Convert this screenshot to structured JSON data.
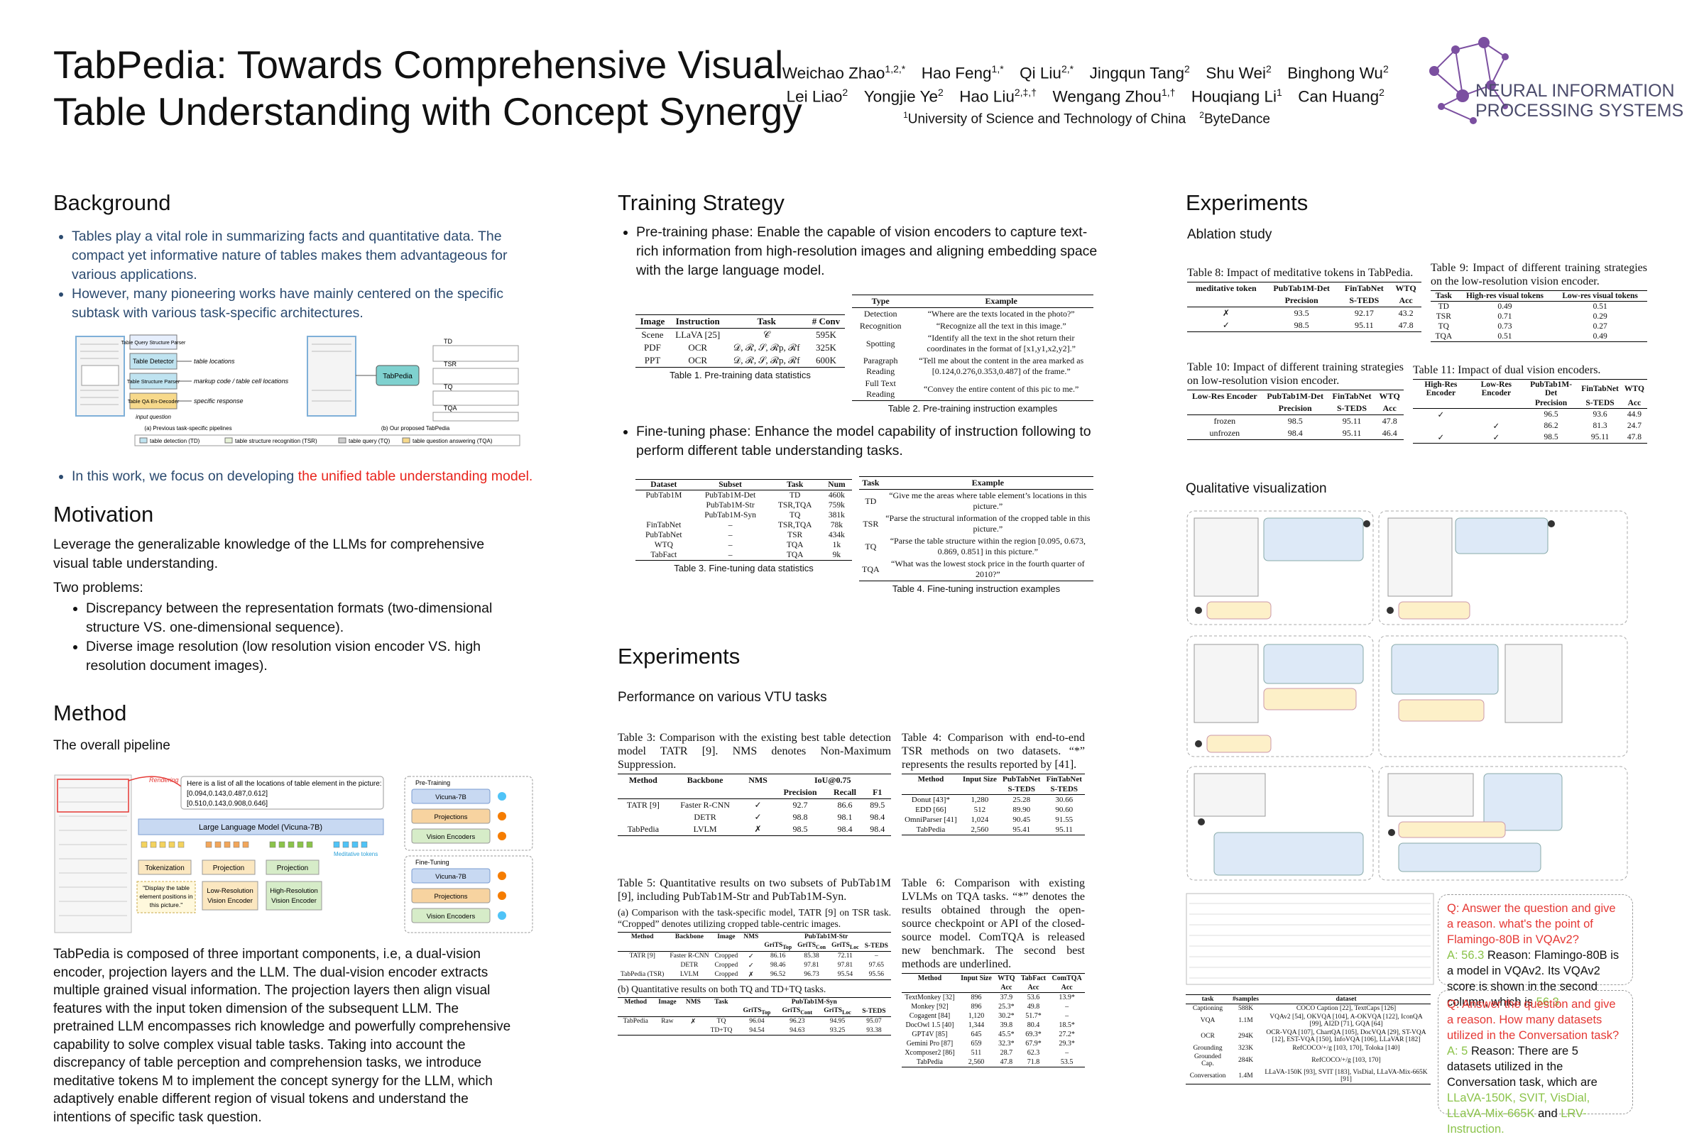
{
  "header": {
    "title_lines": [
      "TabPedia: Towards Comprehensive Visual",
      "Table Understanding with Concept Synergy"
    ],
    "authors": [
      [
        {
          "name": "Weichao Zhao",
          "sup": "1,2,*"
        },
        {
          "name": "Hao Feng",
          "sup": "1,*"
        },
        {
          "name": "Qi Liu",
          "sup": "2,*"
        },
        {
          "name": "Jingqun Tang",
          "sup": "2"
        },
        {
          "name": "Shu Wei",
          "sup": "2"
        },
        {
          "name": "Binghong Wu",
          "sup": "2"
        }
      ],
      [
        {
          "name": "Lei Liao",
          "sup": "2"
        },
        {
          "name": "Yongjie Ye",
          "sup": "2"
        },
        {
          "name": "Hao Liu",
          "sup": "2,‡,†"
        },
        {
          "name": "Wengang Zhou",
          "sup": "1,†"
        },
        {
          "name": "Houqiang Li",
          "sup": "1"
        },
        {
          "name": "Can Huang",
          "sup": "2"
        }
      ]
    ],
    "affiliations": [
      {
        "sup": "1",
        "name": "University of Science and Technology of China"
      },
      {
        "sup": "2",
        "name": "ByteDance"
      }
    ],
    "logo": [
      "NEURAL INFORMATION",
      "PROCESSING SYSTEMS"
    ]
  },
  "background": {
    "heading": "Background",
    "bullets": [
      "Tables play a vital role in summarizing facts and quantitative data. The compact yet informative nature of tables makes them advantageous for various applications.",
      "However, many pioneering works have mainly centered on the specific subtask with various task-specific architectures."
    ],
    "figure": {
      "boxes": [
        "Table Query Structure Parser",
        "Table Detector",
        "Table Structure Parser",
        "Table QA En-Decoder"
      ],
      "outputs": [
        "table locations",
        "markup code / table cell locations",
        "specific response"
      ],
      "input": "input question",
      "ours": "TabPedia",
      "ours_tasks": [
        "TD",
        "TSR",
        "TQ",
        "TQA"
      ],
      "captions": [
        "(a) Previous task-specific pipelines",
        "(b) Our proposed TabPedia"
      ],
      "legend": [
        "table detection (TD)",
        "table structure recognition (TSR)",
        "table query (TQ)",
        "table question answering (TQA)"
      ]
    },
    "last_bullet": [
      {
        "text": "In this work, we focus on developing "
      },
      {
        "text": "the unified table understanding model.",
        "color": "#e8241c"
      }
    ]
  },
  "motivation": {
    "heading": "Motivation",
    "text": "Leverage the generalizable knowledge of the LLMs for comprehensive visual table understanding.",
    "problems_label": "Two problems:",
    "problems": [
      "Discrepancy between the representation formats (two-dimensional structure VS. one-dimensional sequence).",
      "Diverse image resolution (low resolution vision encoder VS. high resolution document images)."
    ]
  },
  "method": {
    "heading": "Method",
    "subheading": "The overall pipeline",
    "figure": {
      "rendering": "Rendering",
      "response": [
        "Here is a list of all the locations of table element in the picture:",
        "[0.094,0.143,0.487,0.612]",
        "[0.510,0.143,0.908,0.646]"
      ],
      "llm": "Large Language Model (Vicuna-7B)",
      "meditative": "Meditative tokens",
      "tokenization": "Tokenization",
      "projection": "Projection",
      "prompt": [
        "\"Display the table",
        "element positions in",
        "this picture.\""
      ],
      "low_res": [
        "Low-Resolution",
        "Vision Encoder"
      ],
      "high_res": [
        "High-Resolution",
        "Vision Encoder"
      ],
      "pretraining": "Pre-Training",
      "finetuning": "Fine-Tuning",
      "modules": [
        "Vicuna-7B",
        "Projections",
        "Vision Encoders"
      ]
    },
    "text": "TabPedia is composed of three important components, i.e, a dual-vision encoder, projection layers and the LLM. The dual-vision encoder extracts multiple grained visual information.  The projection layers then align visual features with the input token dimension of the subsequent LLM. The pretrained LLM encompasses rich knowledge and powerfully comprehensive capability to solve complex visual table tasks. Taking into account the discrepancy of table perception and comprehension tasks, we introduce meditative tokens M to implement the concept synergy for the LLM, which adaptively enable different region of visual tokens and understand the intentions of specific task question."
  },
  "training": {
    "heading": "Training Strategy",
    "bullet1": "Pre-training phase: Enable the capable of vision encoders to capture text-rich information from high-resolution images and aligning embedding space with the large language model.",
    "bullet2": "Fine-tuning phase: Enhance the model capability of instruction following to perform different table understanding tasks.",
    "t1": {
      "caption": "Table 1. Pre-training data statistics",
      "header": [
        [
          "Image",
          "Instruction",
          "Task",
          "# Conv"
        ]
      ],
      "rows": [
        [
          "Scene",
          "LLaVA [25]",
          "𝒞",
          "595K"
        ],
        [
          "PDF",
          "OCR",
          "𝒟, ℛ, 𝒮, ℛp, ℛf",
          "325K"
        ],
        [
          "PPT",
          "OCR",
          "𝒟, ℛ, 𝒮, ℛp, ℛf",
          "600K"
        ]
      ]
    },
    "t2": {
      "caption": "Table 2. Pre-training instruction examples",
      "header": [
        [
          "Type",
          "Example"
        ]
      ],
      "rows": [
        [
          "Detection",
          "“Where are the texts located in the photo?”"
        ],
        [
          "Recognition",
          "“Recognize all the text in this image.”"
        ],
        [
          "Spotting",
          "“Identify all the text in the shot return their coordinates in the format of [x1,y1,x2,y2].”"
        ],
        [
          "Paragraph Reading",
          "“Tell me about the content in the area marked as [0.124,0.276,0.353,0.487] of the frame.”"
        ],
        [
          "Full Text Reading",
          "“Convey the entire content of this pic to me.”"
        ]
      ]
    },
    "t3": {
      "caption": "Table 3. Fine-tuning data statistics",
      "header": [
        [
          "Dataset",
          "Subset",
          "Task",
          "Num"
        ]
      ],
      "rows": [
        [
          "PubTab1M",
          "PubTab1M-Det",
          "TD",
          "460k"
        ],
        [
          null,
          "PubTab1M-Str",
          "TSR,TQA",
          "759k"
        ],
        [
          null,
          "PubTab1M-Syn",
          "TQ",
          "381k"
        ],
        [
          "FinTabNet",
          "–",
          "TSR,TQA",
          "78k"
        ],
        [
          "PubTabNet",
          "–",
          "TSR",
          "434k"
        ],
        [
          "WTQ",
          "–",
          "TQA",
          "1k"
        ],
        [
          "TabFact",
          "–",
          "TQA",
          "9k"
        ]
      ]
    },
    "t4": {
      "caption": "Table 4. Fine-tuning instruction examples",
      "header": [
        [
          "Task",
          "Example"
        ]
      ],
      "rows": [
        [
          "TD",
          "“Give me the areas where table element’s locations in this picture.”"
        ],
        [
          "TSR",
          "“Parse the structural information of the cropped table in this picture.”"
        ],
        [
          "TQ",
          "“Parse the table structure within the region [0.095, 0.673, 0.869, 0.851] in this picture.”"
        ],
        [
          "TQA",
          "“What was the lowest stock price in the fourth quarter of 2010?”"
        ]
      ]
    }
  },
  "experiments": {
    "heading": "Experiments",
    "subheading": "Performance on various VTU tasks",
    "t3": {
      "caption": "Table 3: Comparison with the existing best table detection model TATR [9].  NMS denotes Non-Maximum Suppression.",
      "header": [
        [
          "Method",
          "Backbone",
          "NMS",
          "IoU@0.75",
          null,
          null
        ],
        [
          null,
          null,
          null,
          "Precision",
          "Recall",
          "F1"
        ]
      ],
      "rows": [
        [
          "TATR [9]",
          "Faster R-CNN",
          "✓",
          "92.7",
          "86.6",
          "89.5"
        ],
        [
          null,
          "DETR",
          "✓",
          "98.8",
          "98.1",
          "98.4"
        ],
        [
          "TabPedia",
          "LVLM",
          "✗",
          "98.5",
          "98.4",
          "98.4"
        ]
      ]
    },
    "t4": {
      "caption": "Table 4:  Comparison with end-to-end TSR methods on two datasets. “*” represents the results reported by [41].",
      "header": [
        [
          "Method",
          "Input Size",
          "PubTabNet",
          "FinTabNet"
        ],
        [
          null,
          null,
          "S-TEDS",
          "S-TEDS"
        ]
      ],
      "rows": [
        [
          "Donut [43]*",
          "1,280",
          "25.28",
          "30.66"
        ],
        [
          "EDD [66]",
          "512",
          "89.90",
          "90.60"
        ],
        [
          "OmniParser [41]",
          "1,024",
          "90.45",
          "91.55"
        ],
        [
          "TabPedia",
          "2,560",
          "95.41",
          "95.11"
        ]
      ]
    },
    "t5": {
      "caption": "Table 5:  Quantitative results on two subsets of PubTab1M [9], including PubTab1M-Str and PubTab1M-Syn.",
      "parts": [
        {
          "subcaption": "(a) Comparison with the task-specific model, TATR [9] on TSR task. “Cropped” denotes utilizing cropped table-centric images.",
          "header": [
            [
              "Method",
              "Backbone",
              "Image",
              "NMS",
              "PubTab1M-Str",
              null,
              null,
              null
            ],
            [
              null,
              null,
              null,
              null,
              [
                {
                  "text": "GriTS"
                },
                {
                  "text": "Top",
                  "sub": true
                }
              ],
              [
                {
                  "text": "GriTS"
                },
                {
                  "text": "Con",
                  "sub": true
                }
              ],
              [
                {
                  "text": "GriTS"
                },
                {
                  "text": "Loc",
                  "sub": true
                }
              ],
              "S-TEDS"
            ]
          ],
          "rows": [
            [
              "TATR [9]",
              "Faster R-CNN",
              "Cropped",
              "✓",
              "86.16",
              "85.38",
              "72.11",
              "–"
            ],
            [
              null,
              "DETR",
              "Cropped",
              "✓",
              "98.46",
              "97.81",
              "97.81",
              "97.65"
            ],
            [
              "TabPedia (TSR)",
              "LVLM",
              "Cropped",
              "✗",
              "96.52",
              "96.73",
              "95.54",
              "95.56"
            ]
          ]
        },
        {
          "subcaption": "(b) Quantitative results on both TQ and TD+TQ tasks.",
          "header": [
            [
              "Method",
              "Image",
              "NMS",
              "Task",
              "PubTab1M-Syn",
              null,
              null,
              null
            ],
            [
              null,
              null,
              null,
              null,
              [
                {
                  "text": "GriTS"
                },
                {
                  "text": "Top",
                  "sub": true
                }
              ],
              [
                {
                  "text": "GriTS"
                },
                {
                  "text": "Cont",
                  "sub": true
                }
              ],
              [
                {
                  "text": "GriTS"
                },
                {
                  "text": "Loc",
                  "sub": true
                }
              ],
              "S-TEDS"
            ]
          ],
          "rows": [
            [
              "TabPedia",
              "Raw",
              "✗",
              "TQ",
              "96.04",
              "96.23",
              "94.95",
              "95.07"
            ],
            [
              null,
              null,
              null,
              "TD+TQ",
              "94.54",
              "94.63",
              "93.25",
              "93.38"
            ]
          ]
        }
      ]
    },
    "t6": {
      "caption": "Table 6:  Comparison with existing LVLMs on TQA tasks.  “*” denotes the results obtained through the open-source checkpoint or API of the closed-source model.  ComTQA is released new benchmark.  The second best methods are underlined.",
      "header": [
        [
          "Method",
          "Input Size",
          "WTQ",
          "TabFact",
          "ComTQA"
        ],
        [
          null,
          null,
          "Acc",
          "Acc",
          "Acc"
        ]
      ],
      "rows": [
        [
          "TextMonkey [32]",
          "896",
          "37.9",
          "53.6",
          "13.9*"
        ],
        [
          "Monkey [92]",
          "896",
          "25.3*",
          "49.8",
          "–"
        ],
        [
          "Cogagent [84]",
          "1,120",
          "30.2*",
          "51.7*",
          "–"
        ],
        [
          "DocOwl 1.5 [40]",
          "1,344",
          "39.8",
          "80.4",
          "18.5*"
        ],
        [
          "GPT4V [85]",
          "645",
          "45.5*",
          "69.3*",
          "27.2*"
        ],
        [
          "Gemini Pro [87]",
          "659",
          "32.3*",
          "67.9*",
          "29.3*"
        ],
        [
          "Xcomposer2 [86]",
          "511",
          "28.7",
          "62.3",
          "–"
        ],
        [
          "TabPedia",
          "2,560",
          "47.8",
          "71.8",
          "53.5"
        ]
      ]
    }
  },
  "ablation": {
    "heading": "Experiments",
    "subheading": "Ablation study",
    "t8": {
      "caption": "Table 8: Impact of meditative tokens in TabPedia.",
      "header": [
        [
          "meditative token",
          "PubTab1M-Det",
          "FinTabNet",
          "WTQ"
        ],
        [
          null,
          "Precision",
          "S-TEDS",
          "Acc"
        ]
      ],
      "rows": [
        [
          "✗",
          "93.5",
          "92.17",
          "43.2"
        ],
        [
          "✓",
          "98.5",
          "95.11",
          "47.8"
        ]
      ]
    },
    "t9": {
      "caption": "Table 9:  Impact of different training strategies on the low-resolution vision encoder.",
      "header": [
        [
          "Task",
          "High-res visual tokens",
          "Low-res visual tokens"
        ]
      ],
      "rows": [
        [
          "TD",
          "0.49",
          "0.51"
        ],
        [
          "TSR",
          "0.71",
          "0.29"
        ],
        [
          "TQ",
          "0.73",
          "0.27"
        ],
        [
          "TQA",
          "0.51",
          "0.49"
        ]
      ]
    },
    "t10": {
      "caption": "Table 10: Impact of different training strategies on low-resolution vision encoder.",
      "header": [
        [
          "Low-Res Encoder",
          "PubTab1M-Det",
          "FinTabNet",
          "WTQ"
        ],
        [
          null,
          "Precision",
          "S-TEDS",
          "Acc"
        ]
      ],
      "rows": [
        [
          "frozen",
          "98.5",
          "95.11",
          "47.8"
        ],
        [
          "unfrozen",
          "98.4",
          "95.11",
          "46.4"
        ]
      ]
    },
    "t11": {
      "caption": "Table 11: Impact of dual vision encoders.",
      "header": [
        [
          "High-Res Encoder",
          "Low-Res Encoder",
          "PubTab1M-Det",
          "FinTabNet",
          "WTQ"
        ],
        [
          null,
          null,
          "Precision",
          "S-TEDS",
          "Acc"
        ]
      ],
      "rows": [
        [
          "✓",
          null,
          "96.5",
          "93.6",
          "44.9"
        ],
        [
          null,
          "✓",
          "86.2",
          "81.3",
          "24.7"
        ],
        [
          "✓",
          "✓",
          "98.5",
          "95.11",
          "47.8"
        ]
      ]
    }
  },
  "qualitative": {
    "heading": "Qualitative visualization",
    "datasets": {
      "header": [
        [
          "task",
          "#samples",
          "dataset"
        ]
      ],
      "rows": [
        [
          "Captioning",
          "588K",
          "COCO Caption [22], TextCaps [126]"
        ],
        [
          "VQA",
          "1.1M",
          "VQAv2 [54], OKVQA [104], A-OKVQA [122], IconQA [99], AI2D [71], GQA [64]"
        ],
        [
          "OCR",
          "294K",
          "OCR-VQA [107], ChartQA [105], DocVQA [29], ST-VQA [12], EST-VQA [150], InfoVQA [106], LLaVAR [182]"
        ],
        [
          "Grounding",
          "323K",
          "RefCOCO/+/g [103, 170], Toloka [140]"
        ],
        [
          "Grounded Cap.",
          "284K",
          "RefCOCO/+/g [103, 170]"
        ],
        [
          "Conversation",
          "1.4M",
          "LLaVA-150K [93], SVIT [183], VisDial, LLaVA-Mix-665K [91]"
        ]
      ]
    },
    "qa": [
      {
        "q": "Q: Answer the question and give a reason. what's the point of Flamingo-80B in VQAv2?",
        "a": [
          {
            "text": "A: 56.3",
            "color": "#8bc34a"
          },
          {
            "text": " Reason: Flamingo-80B is a model in VQAv2. Its VQAv2 score is shown in the second column, which is "
          },
          {
            "text": "56.3.",
            "color": "#8bc34a"
          }
        ]
      },
      {
        "q": "Q: Answer the question and give a reason. How many datasets utilized in the Conversation task?",
        "a": [
          {
            "text": "A: 5",
            "color": "#8bc34a"
          },
          {
            "text": " Reason: There are 5 datasets utilized in the Conversation task, which are "
          },
          {
            "text": "LLaVA-150K, SVIT, VisDial, LLaVA-Mix-665K",
            "color": "#8bc34a"
          },
          {
            "text": " and "
          },
          {
            "text": "LRV-Instruction.",
            "color": "#8bc34a"
          }
        ]
      }
    ]
  }
}
